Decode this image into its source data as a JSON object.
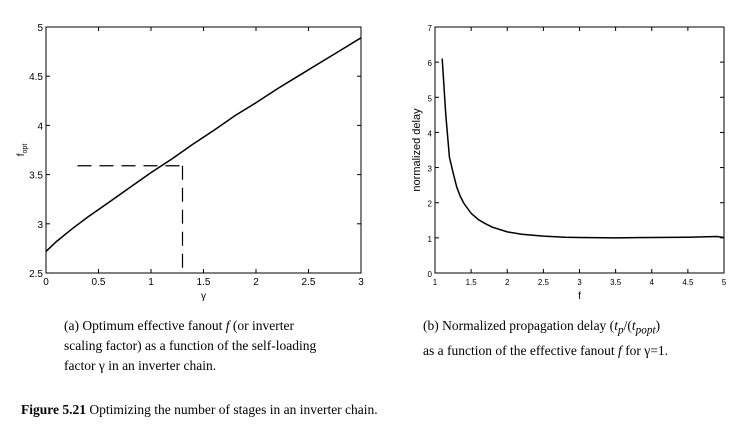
{
  "chart_data": [
    {
      "type": "line",
      "title": "",
      "xlabel": "γ",
      "ylabel": "f_opt",
      "xlim": [
        0,
        3
      ],
      "ylim": [
        2.5,
        5
      ],
      "x_ticks": [
        "0",
        "0.5",
        "1",
        "1.5",
        "2",
        "2.5",
        "3"
      ],
      "x_tick_values": [
        0,
        0.5,
        1,
        1.5,
        2,
        2.5,
        3
      ],
      "y_ticks": [
        "2.5",
        "3",
        "3.5",
        "4",
        "4.5",
        "5"
      ],
      "y_tick_values": [
        2.5,
        3,
        3.5,
        4,
        4.5,
        5
      ],
      "grid": false,
      "series": [
        {
          "x": [
            0,
            0.1,
            0.25,
            0.4,
            0.6,
            0.8,
            1.0,
            1.2,
            1.4,
            1.6,
            1.8,
            2.0,
            2.2,
            2.4,
            2.6,
            2.8,
            3.0
          ],
          "y": [
            2.72,
            2.82,
            2.95,
            3.07,
            3.22,
            3.37,
            3.52,
            3.66,
            3.81,
            3.95,
            4.1,
            4.23,
            4.37,
            4.5,
            4.63,
            4.76,
            4.89
          ]
        }
      ],
      "dashed_guides": [
        {
          "x": [
            0.3,
            1.3
          ],
          "y": [
            3.59,
            3.59
          ]
        },
        {
          "x": [
            1.3,
            1.3
          ],
          "y": [
            3.59,
            2.5
          ]
        }
      ]
    },
    {
      "type": "line",
      "title": "",
      "xlabel": "f",
      "ylabel": "normalized delay",
      "xlim": [
        1,
        5
      ],
      "ylim": [
        0,
        7
      ],
      "x_ticks": [
        "1",
        "1.5",
        "2",
        "2.5",
        "3",
        "3.5",
        "4",
        "4.5",
        "5"
      ],
      "x_tick_values": [
        1,
        1.5,
        2,
        2.5,
        3,
        3.5,
        4,
        4.5,
        5
      ],
      "y_ticks": [
        "0",
        "1",
        "2",
        "3",
        "4",
        "5",
        "6",
        "7"
      ],
      "y_tick_values": [
        0,
        1,
        2,
        3,
        4,
        5,
        6,
        7
      ],
      "grid": false,
      "series": [
        {
          "x": [
            1.1,
            1.15,
            1.2,
            1.25,
            1.3,
            1.35,
            1.4,
            1.5,
            1.6,
            1.7,
            1.8,
            2.0,
            2.2,
            2.5,
            2.8,
            3.0,
            3.5,
            4.0,
            4.5,
            4.9,
            5.0
          ],
          "y": [
            6.1,
            4.5,
            3.3,
            2.85,
            2.45,
            2.18,
            1.98,
            1.7,
            1.52,
            1.4,
            1.3,
            1.17,
            1.1,
            1.05,
            1.02,
            1.01,
            1.0,
            1.01,
            1.02,
            1.04,
            1.01
          ]
        }
      ]
    }
  ],
  "captions": {
    "a_prefix": "(a) Optimum effective fanout ",
    "a_italic": "f",
    "a_rest_line1": " (or inverter",
    "a_line2": "scaling factor) as a function of the self-loading",
    "a_line3": "factor γ in an inverter chain.",
    "b_line1_pre": "(b) Normalized propagation delay (",
    "b_tp": "t",
    "b_tp_sub": "p",
    "b_mid": "/(",
    "b_tpopt": "t",
    "b_tpopt_sub": "popt",
    "b_end": ")",
    "b_line2_pre": "as a function of the effective fanout ",
    "b_line2_italic": "f",
    "b_line2_post": " for γ=1."
  },
  "figure_caption": {
    "label": "Figure 5.21",
    "text": " Optimizing the number of stages in an inverter chain."
  }
}
